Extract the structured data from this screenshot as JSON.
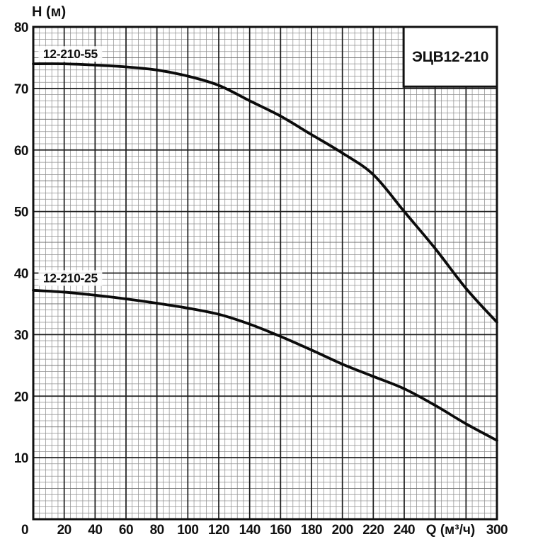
{
  "chart_data": {
    "type": "line",
    "title_box_label": "ЭЦВ12-210",
    "ylabel": "H (м)",
    "xlabel": "Q (м³/ч)",
    "xlim": [
      0,
      300
    ],
    "ylim": [
      0,
      80
    ],
    "x_major_step": 20,
    "y_major_step": 10,
    "x_minor_step": 4,
    "y_minor_step": 1,
    "grid": "fine graph-paper grid on, major lines every 20 Q and 10 H",
    "legend_position": "labels drawn on curves; model number in box at top-right",
    "x_tick_labels": [
      0,
      20,
      40,
      60,
      80,
      100,
      120,
      140,
      160,
      180,
      200,
      220,
      240,
      300
    ],
    "xlabel_position_q": 270,
    "y_tick_labels": [
      10,
      20,
      30,
      40,
      50,
      60,
      70,
      80
    ],
    "series": [
      {
        "name": "12-210-55",
        "label_at": {
          "q": 24,
          "h": 75.6
        },
        "points": [
          [
            0,
            74
          ],
          [
            20,
            74
          ],
          [
            40,
            73.8
          ],
          [
            60,
            73.5
          ],
          [
            80,
            73
          ],
          [
            100,
            72
          ],
          [
            120,
            70.5
          ],
          [
            140,
            68
          ],
          [
            160,
            65.5
          ],
          [
            180,
            62.5
          ],
          [
            200,
            59.5
          ],
          [
            220,
            56
          ],
          [
            240,
            50
          ],
          [
            260,
            44
          ],
          [
            280,
            37.5
          ],
          [
            300,
            32
          ]
        ]
      },
      {
        "name": "12-210-25",
        "label_at": {
          "q": 24,
          "h": 39.2
        },
        "points": [
          [
            0,
            37.2
          ],
          [
            20,
            36.9
          ],
          [
            40,
            36.4
          ],
          [
            60,
            35.8
          ],
          [
            80,
            35.1
          ],
          [
            100,
            34.3
          ],
          [
            120,
            33.3
          ],
          [
            140,
            31.7
          ],
          [
            160,
            29.7
          ],
          [
            180,
            27.5
          ],
          [
            200,
            25.2
          ],
          [
            220,
            23.2
          ],
          [
            240,
            21.2
          ],
          [
            260,
            18.5
          ],
          [
            280,
            15.5
          ],
          [
            300,
            12.8
          ]
        ]
      }
    ],
    "title_box_bounds": {
      "q1": 239.6,
      "h1": 70.3,
      "q2": 300,
      "h2": 80
    },
    "colors": {
      "background": "#ffffff",
      "curve": "#0b0b0b",
      "major_grid": "#1c1c1c",
      "medium_grid": "#6a6a6a",
      "minor_grid": "#919191",
      "text": "#111111",
      "box_fill": "#ffffff"
    }
  }
}
